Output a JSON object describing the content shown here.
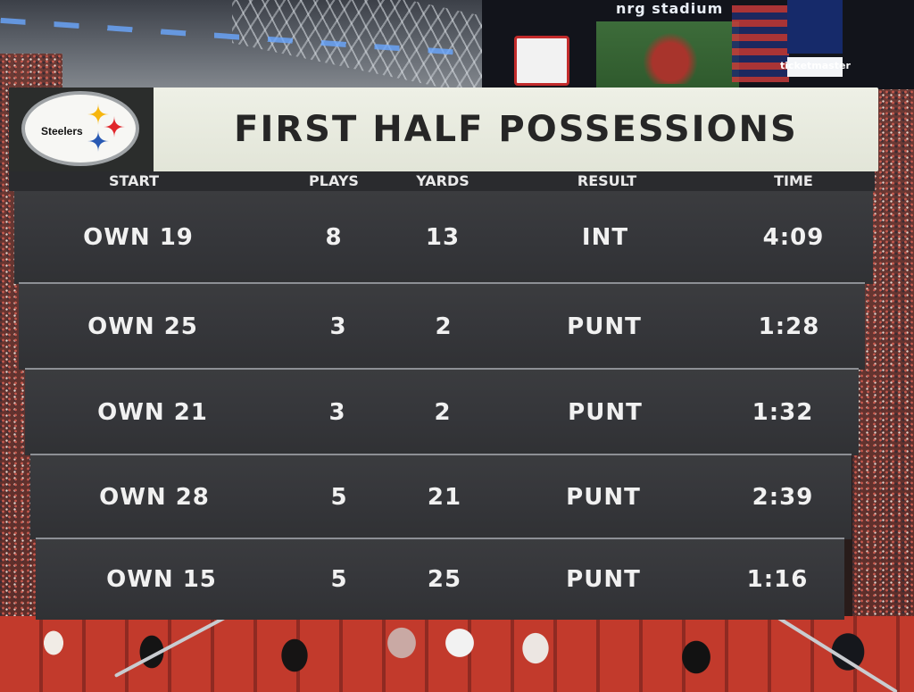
{
  "scene": {
    "far_board_brand": "nrg stadium",
    "far_board_ticket": "ticketmaster"
  },
  "scoreboard": {
    "team_logo_text": "Steelers",
    "title": "FIRST HALF POSSESSIONS",
    "headers": {
      "start": "START",
      "plays": "PLAYS",
      "yards": "YARDS",
      "result": "RESULT",
      "time": "TIME"
    },
    "rows": [
      {
        "start": "OWN 19",
        "plays": "8",
        "yards": "13",
        "result": "INT",
        "time": "4:09"
      },
      {
        "start": "OWN 25",
        "plays": "3",
        "yards": "2",
        "result": "PUNT",
        "time": "1:28"
      },
      {
        "start": "OWN 21",
        "plays": "3",
        "yards": "2",
        "result": "PUNT",
        "time": "1:32"
      },
      {
        "start": "OWN 28",
        "plays": "5",
        "yards": "21",
        "result": "PUNT",
        "time": "2:39"
      },
      {
        "start": "OWN 15",
        "plays": "5",
        "yards": "25",
        "result": "PUNT",
        "time": "1:16"
      }
    ],
    "logo_colors": {
      "yellow": "#f6b60f",
      "red": "#e0262b",
      "blue": "#2859b3"
    }
  }
}
